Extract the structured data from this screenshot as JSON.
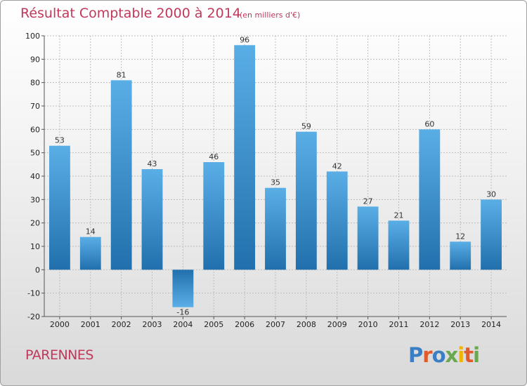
{
  "title": "Résultat Comptable 2000 à 2014",
  "subtitle": "(en milliers d'€)",
  "commune": "PARENNES",
  "logo": {
    "text": "Proxiti",
    "colors": [
      "#3b7ec4",
      "#e05a2b",
      "#3b7ec4",
      "#6aa84f",
      "#f0b400",
      "#e05a2b",
      "#6aa84f"
    ]
  },
  "colors": {
    "bar_top": "#5aaee6",
    "bar_bottom": "#2170ad",
    "title": "#c0395b",
    "grid": "#bdbdbd"
  },
  "chart_data": {
    "type": "bar",
    "title": "Résultat Comptable 2000 à 2014",
    "subtitle": "(en milliers d'€)",
    "categories": [
      "2000",
      "2001",
      "2002",
      "2003",
      "2004",
      "2005",
      "2006",
      "2007",
      "2008",
      "2009",
      "2010",
      "2011",
      "2012",
      "2013",
      "2014"
    ],
    "values": [
      53,
      14,
      81,
      43,
      -16,
      46,
      96,
      35,
      59,
      42,
      27,
      21,
      60,
      12,
      30
    ],
    "ylim": [
      -20,
      100
    ],
    "yticks": [
      -20,
      -10,
      0,
      10,
      20,
      30,
      40,
      50,
      60,
      70,
      80,
      90,
      100
    ],
    "grid": true,
    "xlabel": "",
    "ylabel": ""
  }
}
